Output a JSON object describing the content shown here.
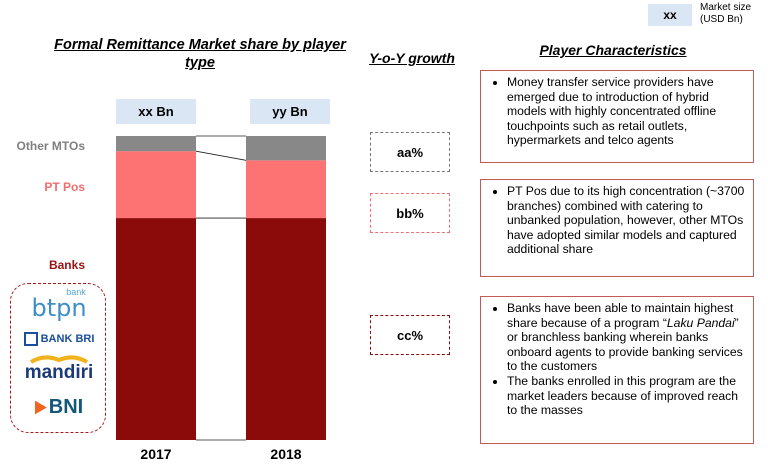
{
  "legend": {
    "box_label": "xx",
    "text": "Market size (USD Bn)"
  },
  "chart_data": {
    "type": "bar",
    "stacked": true,
    "title": "Formal Remittance Market share by player type",
    "categories": [
      "2017",
      "2018"
    ],
    "totals": [
      "xx Bn",
      "yy Bn"
    ],
    "series": [
      {
        "name": "Banks",
        "values": [
          73,
          73
        ],
        "color": "#8b0a0a"
      },
      {
        "name": "PT Pos",
        "values": [
          22,
          19
        ],
        "color": "#fd7272"
      },
      {
        "name": "Other MTOs",
        "values": [
          5,
          8
        ],
        "color": "#888888"
      }
    ],
    "ylim": [
      0,
      100
    ],
    "grid": false,
    "legend": "left-labels"
  },
  "yoy": {
    "title": "Y-o-Y growth",
    "items": [
      {
        "label": "aa%",
        "color": "#777777"
      },
      {
        "label": "bb%",
        "color": "#f26d6d"
      },
      {
        "label": "cc%",
        "color": "#8b0a0a"
      }
    ]
  },
  "player": {
    "title": "Player Characteristics",
    "boxes": [
      {
        "bullets": [
          "Money transfer service providers have emerged due to introduction of hybrid models with highly concentrated offline touchpoints such as retail outlets, hypermarkets and telco agents"
        ]
      },
      {
        "bullets": [
          "PT Pos due to its high concentration (~3700 branches) combined with catering to unbanked population, however, other MTOs have adopted similar models and captured additional share"
        ]
      },
      {
        "bullets": [
          "Banks have been able to maintain highest share because of a program “Laku Pandai” or branchless banking wherein banks onboard agents to provide banking services to the customers",
          "The banks enrolled in this program are the market leaders because of improved reach to the masses"
        ]
      }
    ]
  },
  "logos": {
    "btpn_small": "bank",
    "btpn": "btpn",
    "bri": "BANK BRI",
    "mandiri": "mandiri",
    "bni": "BNI"
  },
  "colors": {
    "accent_red": "#8b0a0a",
    "pink": "#fd7272",
    "grey": "#888888",
    "total_bg": "#dbe6f4"
  }
}
